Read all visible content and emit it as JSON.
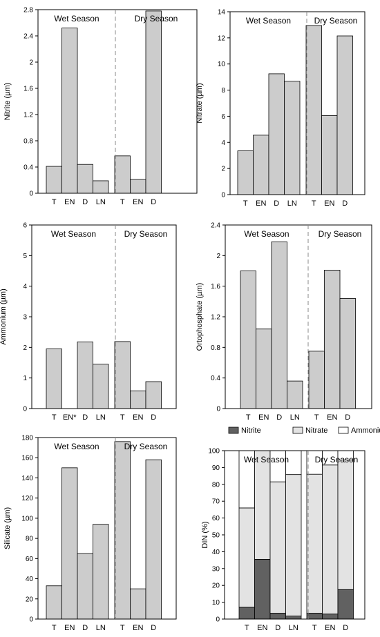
{
  "colors": {
    "bar": "#cccccc",
    "stroke": "#000000",
    "nitrite": "#616161",
    "nitrate": "#e3e3e3",
    "ammonium": "#ffffff",
    "divider": "#888888"
  },
  "chart_data": [
    {
      "type": "bar",
      "ylabel": "Nitrite (µm)",
      "ylim": [
        0,
        2.8
      ],
      "yticks": [
        "0",
        "0.4",
        "0.8",
        "1.2",
        "1.6",
        "2",
        "2.4",
        "2.8"
      ],
      "categories": [
        "T",
        "EN",
        "D",
        "LN",
        "T",
        "EN",
        "D"
      ],
      "groups": [
        "Wet Season",
        "Dry Season"
      ],
      "group_sizes": [
        4,
        3
      ],
      "values": [
        0.41,
        2.52,
        0.44,
        0.19,
        0.57,
        0.21,
        2.78
      ]
    },
    {
      "type": "bar",
      "ylabel": "Nitrate (µm)",
      "ylim": [
        0,
        14
      ],
      "yticks": [
        "0",
        "2",
        "4",
        "6",
        "8",
        "10",
        "12",
        "14"
      ],
      "categories": [
        "T",
        "EN",
        "D",
        "LN",
        "T",
        "EN",
        "D"
      ],
      "groups": [
        "Wet Season",
        "Dry Season"
      ],
      "group_sizes": [
        4,
        3
      ],
      "values": [
        3.35,
        4.55,
        9.25,
        8.68,
        12.95,
        6.05,
        12.15
      ]
    },
    {
      "type": "bar",
      "ylabel": "Ammonium (µm)",
      "ylim": [
        0,
        6
      ],
      "yticks": [
        "0",
        "1",
        "2",
        "3",
        "4",
        "5",
        "6"
      ],
      "categories": [
        "T",
        "EN*",
        "D",
        "LN",
        "T",
        "EN",
        "D"
      ],
      "groups": [
        "Wet Season",
        "Dry Season"
      ],
      "group_sizes": [
        4,
        3
      ],
      "values": [
        1.95,
        0,
        2.18,
        1.45,
        2.19,
        0.58,
        0.88
      ]
    },
    {
      "type": "bar",
      "ylabel": "Ortophosphate (µm)",
      "ylim": [
        0,
        2.4
      ],
      "yticks": [
        "0",
        "0.4",
        "0.8",
        "1.2",
        "1.6",
        "2",
        "2.4"
      ],
      "categories": [
        "T",
        "EN",
        "D",
        "LN",
        "T",
        "EN",
        "D"
      ],
      "groups": [
        "Wet Season",
        "Dry Season"
      ],
      "group_sizes": [
        4,
        3
      ],
      "values": [
        1.8,
        1.04,
        2.18,
        0.36,
        0.75,
        1.81,
        1.44
      ]
    },
    {
      "type": "bar",
      "ylabel": "Silicate (µm)",
      "ylim": [
        0,
        180
      ],
      "yticks": [
        "0",
        "20",
        "40",
        "60",
        "80",
        "100",
        "120",
        "140",
        "160",
        "180"
      ],
      "categories": [
        "T",
        "EN",
        "D",
        "LN",
        "T",
        "EN",
        "D"
      ],
      "groups": [
        "Wet Season",
        "Dry Season"
      ],
      "group_sizes": [
        4,
        3
      ],
      "values": [
        33,
        150,
        65,
        94,
        176,
        30,
        158
      ]
    },
    {
      "type": "bar",
      "stacked": true,
      "ylabel": "DIN (%)",
      "ylim": [
        0,
        100
      ],
      "yticks": [
        "0",
        "10",
        "20",
        "30",
        "40",
        "50",
        "60",
        "70",
        "80",
        "90",
        "100"
      ],
      "categories": [
        "T",
        "EN",
        "D",
        "LN",
        "T",
        "EN",
        "D"
      ],
      "groups": [
        "Wet Season",
        "Dry Season"
      ],
      "group_sizes": [
        4,
        3
      ],
      "legend": [
        "Nitrite",
        "Nitrate",
        "Ammonium"
      ],
      "series": [
        {
          "name": "Nitrite",
          "values": [
            7,
            35.5,
            3.5,
            1.8,
            3.5,
            3,
            17.5
          ]
        },
        {
          "name": "Nitrate",
          "values": [
            59,
            64.5,
            78,
            84,
            82.5,
            88.5,
            77
          ]
        },
        {
          "name": "Ammonium",
          "values": [
            34,
            0,
            18.5,
            14.2,
            14,
            8.5,
            5.5
          ]
        }
      ]
    }
  ]
}
